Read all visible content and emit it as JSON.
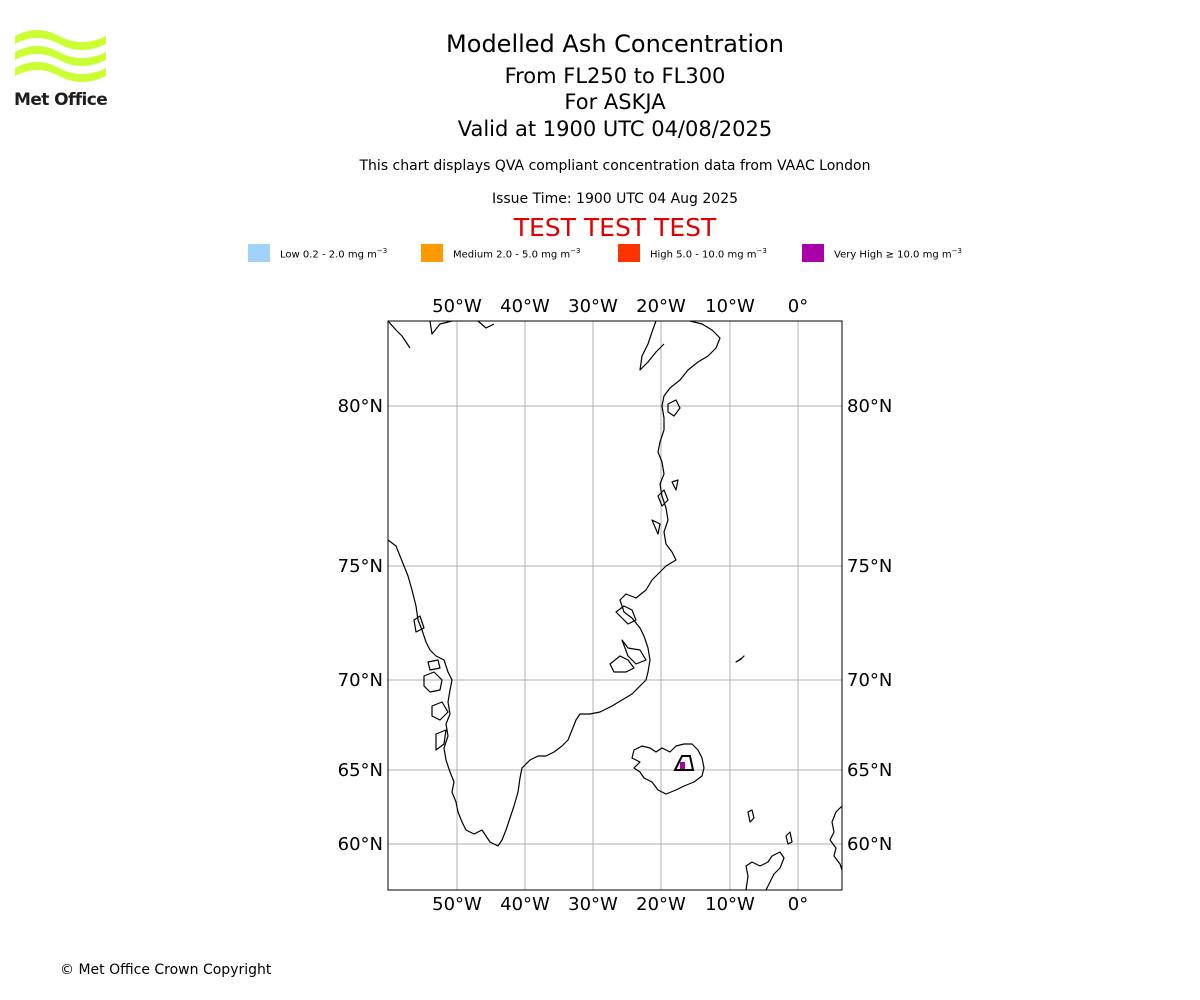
{
  "logo": {
    "text": "Met Office",
    "color": "#ccff33"
  },
  "header": {
    "title": "Modelled Ash Concentration",
    "levels": "From FL250 to FL300",
    "volcano": "For ASKJA",
    "valid": "Valid at 1900 UTC 04/08/2025",
    "description": "This chart displays QVA compliant concentration data from VAAC London",
    "issue_time": "Issue Time: 1900 UTC 04 Aug 2025",
    "test_banner": "TEST TEST TEST"
  },
  "legend": [
    {
      "label": "Low 0.2 - 2.0 mg m",
      "unit_exp": "−3",
      "color": "#a0d2fa"
    },
    {
      "label": "Medium 2.0 - 5.0 mg m",
      "unit_exp": "−3",
      "color": "#ff9900"
    },
    {
      "label": "High 5.0 - 10.0 mg m",
      "unit_exp": "−3",
      "color": "#ff3300"
    },
    {
      "label": "Very High ≥ 10.0 mg m",
      "unit_exp": "−3",
      "color": "#aa00aa"
    }
  ],
  "map": {
    "lon_labels": [
      "50°W",
      "40°W",
      "30°W",
      "20°W",
      "10°W",
      "0°"
    ],
    "lat_labels": [
      "80°N",
      "75°N",
      "70°N",
      "65°N",
      "60°N"
    ],
    "gridlines": true,
    "volcano_marker": "triangle-icon",
    "ash_level_shown": "Very High"
  },
  "footer": {
    "copyright": "© Met Office Crown Copyright"
  }
}
